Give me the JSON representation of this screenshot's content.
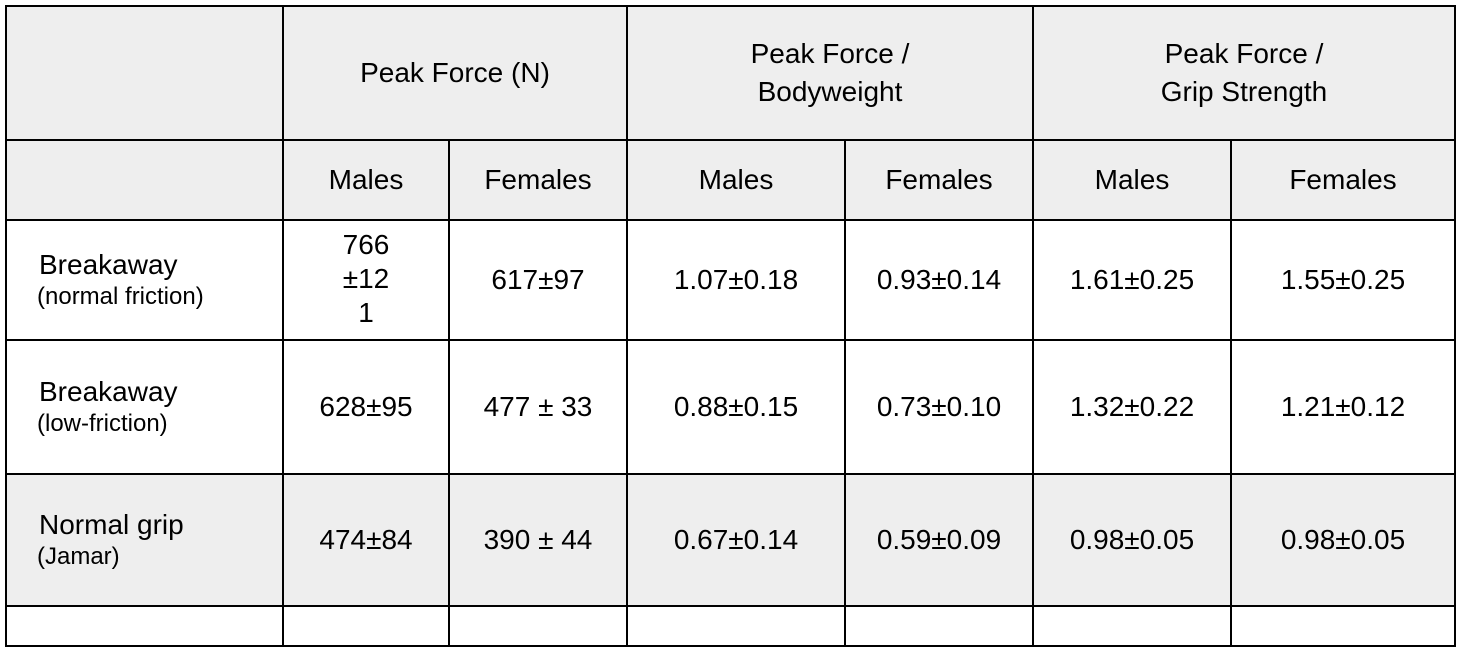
{
  "table": {
    "group_headers": [
      {
        "lines": [
          "Peak Force (N)"
        ]
      },
      {
        "lines": [
          "Peak Force /",
          "Bodyweight"
        ]
      },
      {
        "lines": [
          "Peak Force /",
          "Grip Strength"
        ]
      }
    ],
    "sub_headers": [
      "Males",
      "Females",
      "Males",
      "Females",
      "Males",
      "Females"
    ],
    "rows": [
      {
        "label": "Breakaway",
        "note": "(normal friction)",
        "cells": [
          "766±121",
          "617±97",
          "1.07±0.18",
          "0.93±0.14",
          "1.61±0.25",
          "1.55±0.25"
        ]
      },
      {
        "label": "Breakaway",
        "note": "(low-friction)",
        "cells": [
          "628±95",
          "477 ± 33",
          "0.88±0.15",
          "0.73±0.10",
          "1.32±0.22",
          "1.21±0.12"
        ]
      },
      {
        "label": "Normal grip",
        "note": "(Jamar)",
        "cells": [
          "474±84",
          "390 ± 44",
          "0.67±0.14",
          "0.59±0.09",
          "0.98±0.05",
          "0.98±0.05"
        ]
      }
    ]
  }
}
